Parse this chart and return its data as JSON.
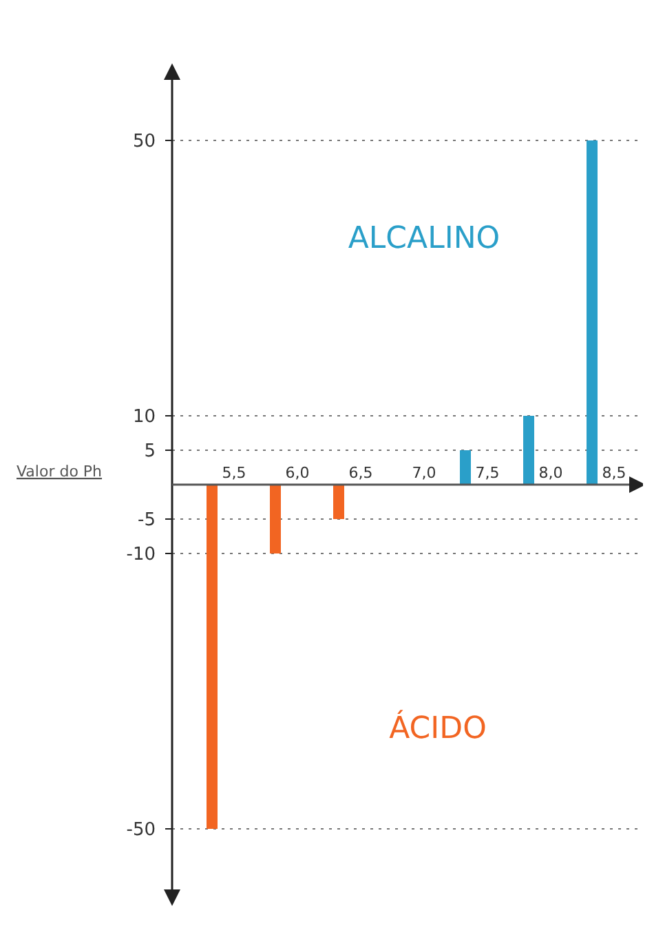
{
  "chart_data": {
    "type": "bar",
    "xlabel": "Valor do Ph",
    "categories": [
      "5,5",
      "6,0",
      "6,5",
      "7,0",
      "7,5",
      "8,0",
      "8,5"
    ],
    "values": [
      -50,
      -10,
      -5,
      0,
      5,
      10,
      50
    ],
    "colors": [
      "#f26522",
      "#f26522",
      "#f26522",
      "#f26522",
      "#2a9fc9",
      "#2a9fc9",
      "#2a9fc9"
    ],
    "ylim": [
      -60,
      60
    ],
    "yticks": [
      -50,
      -10,
      -5,
      5,
      10,
      50
    ],
    "grid": "y",
    "annotations": [
      "ALCALINO",
      "ÁCIDO"
    ]
  }
}
